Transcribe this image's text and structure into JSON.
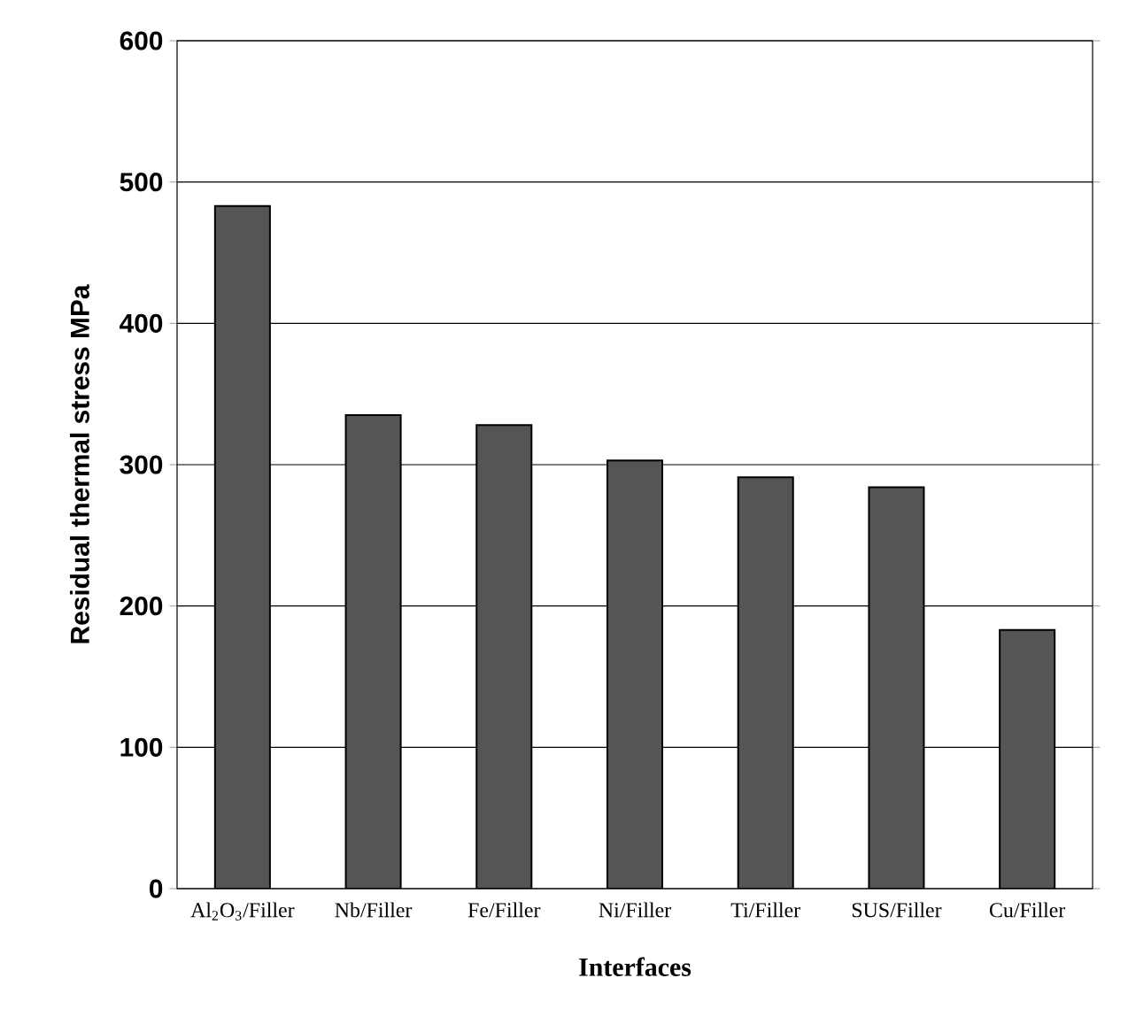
{
  "chart_data": {
    "type": "bar",
    "xlabel": "Interfaces",
    "ylabel": "Residual thermal stress MPa",
    "categories": [
      "Al$_{2}$O$_{3}$/Filler",
      "Nb/Filler",
      "Fe/Filler",
      "Ni/Filler",
      "Ti/Filler",
      "SUS/Filler",
      "Cu/Filler"
    ],
    "values": [
      483,
      335,
      328,
      303,
      291,
      284,
      183
    ],
    "color": "#555555",
    "ylim": [
      0,
      600
    ],
    "yticks": [
      0,
      100,
      200,
      300,
      400,
      500,
      600
    ],
    "grid": "y"
  }
}
